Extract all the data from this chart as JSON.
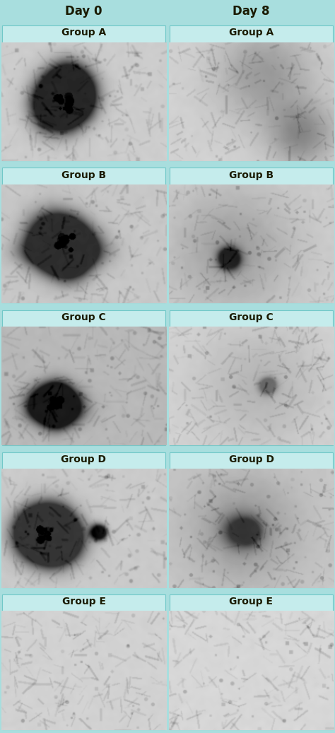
{
  "title_day0": "Day 0",
  "title_day8": "Day 8",
  "groups": [
    "A",
    "B",
    "C",
    "D",
    "E"
  ],
  "header_bg": "#F2A96E",
  "header_mid_line": "#C8854A",
  "cell_bg": "#C5ECEC",
  "outer_bg": "#A8DEDE",
  "header_text_color": "#1A1A00",
  "group_label_color": "#1A1A00",
  "header_fontsize": 12,
  "group_fontsize": 10,
  "fig_width": 4.74,
  "fig_height": 10.37,
  "dpi": 100,
  "border_color": "#70C8C8"
}
